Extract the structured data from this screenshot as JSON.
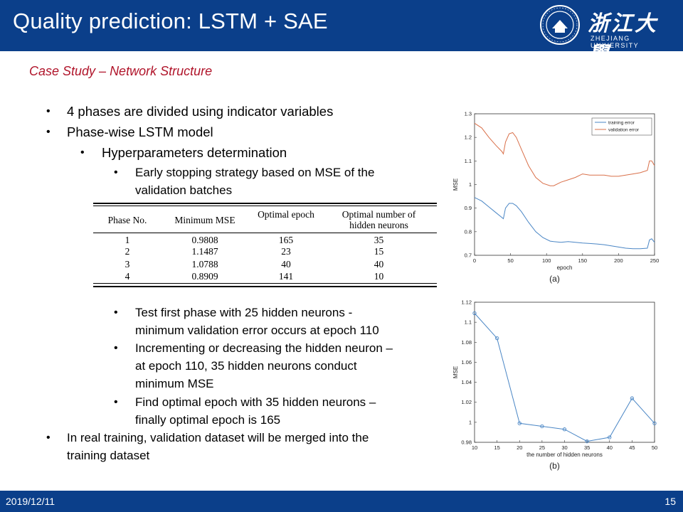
{
  "header": {
    "title": "Quality prediction: LSTM + SAE",
    "logo_cn": "浙江大學",
    "logo_en": "ZHEJIANG UNIVERSITY"
  },
  "subtitle": "Case Study – Network Structure",
  "bullets": {
    "b1": "4 phases are divided using indicator variables",
    "b2": "Phase-wise LSTM model",
    "b2a": "Hyperparameters determination",
    "b2a1_l1": "Early stopping strategy based on MSE of the",
    "b2a1_l2": "validation batches",
    "b2a2_l1": "Test first phase with 25 hidden neurons -",
    "b2a2_l2": "minimum validation error occurs at epoch 110",
    "b2a3_l1": "Incrementing or decreasing the hidden neuron –",
    "b2a3_l2": "at epoch 110, 35 hidden neurons conduct",
    "b2a3_l3": "minimum MSE",
    "b2a4_l1": "Find optimal epoch with 35 hidden neurons –",
    "b2a4_l2": "finally optimal epoch is 165",
    "b3_l1": "In real training, validation dataset will be merged into the",
    "b3_l2": "training dataset"
  },
  "table": {
    "headers": [
      "Phase No.",
      "Minimum MSE",
      "Optimal epoch",
      "Optimal number of hidden neurons"
    ],
    "rows": [
      [
        "1",
        "0.9808",
        "165",
        "35"
      ],
      [
        "2",
        "1.1487",
        "23",
        "15"
      ],
      [
        "3",
        "1.0788",
        "40",
        "40"
      ],
      [
        "4",
        "0.8909",
        "141",
        "10"
      ]
    ]
  },
  "footer": {
    "date": "2019/12/11",
    "page": "15"
  },
  "colors": {
    "header_bg": "#0b3f8a",
    "subtitle": "#b0142a",
    "training": "#4a86c5",
    "validation": "#d9704a"
  },
  "chart_data": [
    {
      "type": "line",
      "caption": "(a)",
      "xlabel": "epoch",
      "ylabel": "MSE",
      "xlim": [
        0,
        250
      ],
      "ylim": [
        0.7,
        1.3
      ],
      "xticks": [
        0,
        50,
        100,
        150,
        200,
        250
      ],
      "yticks": [
        0.7,
        0.8,
        0.9,
        1,
        1.1,
        1.2,
        1.3
      ],
      "legend_position": "top-right",
      "series": [
        {
          "name": "training error",
          "color": "#4a86c5",
          "x": [
            0,
            10,
            20,
            30,
            38,
            40,
            43,
            48,
            53,
            58,
            65,
            75,
            85,
            95,
            105,
            110,
            120,
            130,
            140,
            150,
            160,
            170,
            180,
            190,
            200,
            210,
            220,
            230,
            240,
            243,
            246,
            250
          ],
          "y": [
            0.945,
            0.93,
            0.905,
            0.88,
            0.86,
            0.855,
            0.9,
            0.92,
            0.92,
            0.91,
            0.885,
            0.84,
            0.8,
            0.775,
            0.76,
            0.758,
            0.755,
            0.758,
            0.755,
            0.752,
            0.75,
            0.748,
            0.745,
            0.74,
            0.735,
            0.73,
            0.728,
            0.728,
            0.73,
            0.765,
            0.77,
            0.755
          ]
        },
        {
          "name": "validation error",
          "color": "#d9704a",
          "x": [
            0,
            10,
            20,
            30,
            38,
            40,
            43,
            48,
            53,
            58,
            65,
            75,
            85,
            95,
            105,
            110,
            120,
            130,
            140,
            150,
            160,
            170,
            180,
            190,
            200,
            210,
            220,
            230,
            240,
            243,
            246,
            250
          ],
          "y": [
            1.26,
            1.24,
            1.2,
            1.165,
            1.14,
            1.13,
            1.18,
            1.215,
            1.22,
            1.2,
            1.15,
            1.08,
            1.03,
            1.005,
            0.995,
            0.995,
            1.01,
            1.02,
            1.03,
            1.045,
            1.04,
            1.04,
            1.04,
            1.035,
            1.035,
            1.04,
            1.045,
            1.05,
            1.06,
            1.1,
            1.1,
            1.08
          ]
        }
      ]
    },
    {
      "type": "line",
      "caption": "(b)",
      "xlabel": "the number of hidden neurons",
      "ylabel": "MSE",
      "xlim": [
        10,
        50
      ],
      "ylim": [
        0.98,
        1.12
      ],
      "xticks": [
        10,
        15,
        20,
        25,
        30,
        35,
        40,
        45,
        50
      ],
      "yticks": [
        0.98,
        1,
        1.02,
        1.04,
        1.06,
        1.08,
        1.1,
        1.12
      ],
      "series": [
        {
          "color": "#4a86c5",
          "x": [
            10,
            15,
            20,
            25,
            30,
            35,
            40,
            45,
            50
          ],
          "y": [
            1.109,
            1.084,
            0.999,
            0.996,
            0.993,
            0.981,
            0.985,
            1.024,
            0.999
          ]
        }
      ]
    }
  ]
}
